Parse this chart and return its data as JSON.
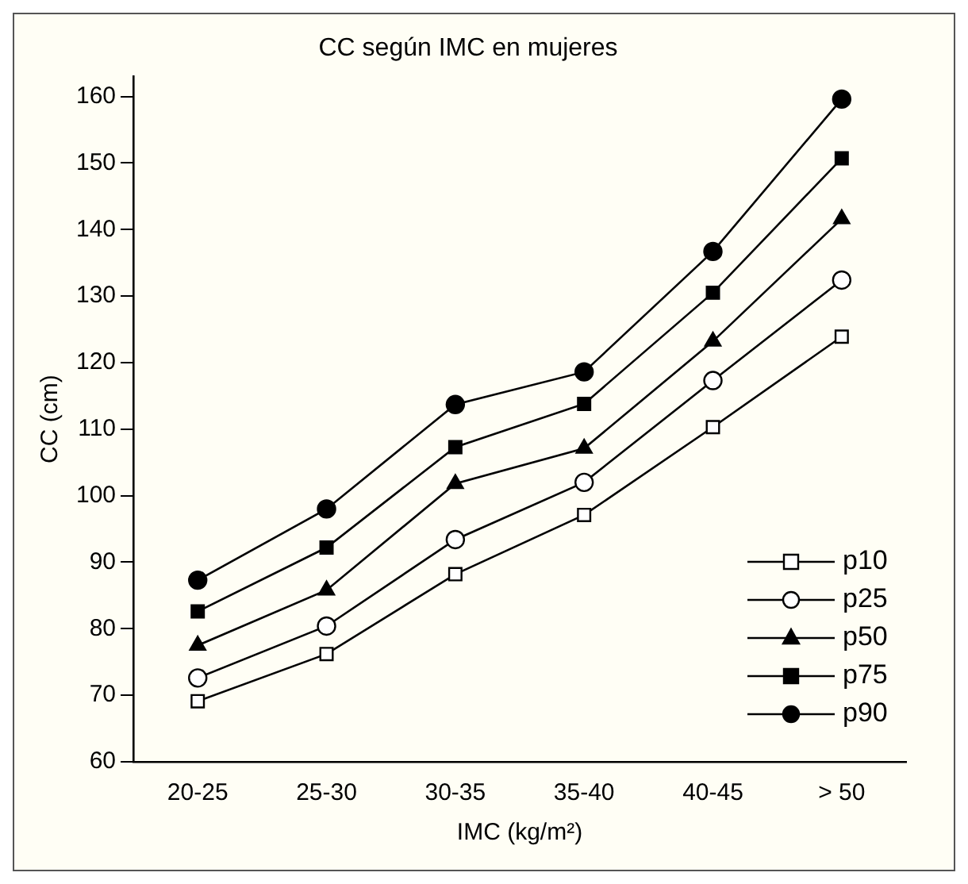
{
  "chart_data": {
    "type": "line",
    "title": "CC según IMC en mujeres",
    "xlabel": "IMC (kg/m²)",
    "ylabel": "CC (cm)",
    "categories": [
      "20-25",
      "25-30",
      "30-35",
      "35-40",
      "40-45",
      "> 50"
    ],
    "ylim": [
      60,
      163
    ],
    "yticks": [
      60,
      70,
      80,
      90,
      100,
      110,
      120,
      130,
      140,
      150,
      160
    ],
    "grid": false,
    "legend": "bottom right",
    "series": [
      {
        "name": "p10",
        "color": "#000000",
        "marker": "square",
        "values": [
          69.1,
          76.2,
          88.2,
          97.1,
          110.3,
          123.9
        ]
      },
      {
        "name": "p25",
        "color": "#000000",
        "marker": "circle",
        "values": [
          72.6,
          80.4,
          93.4,
          102.0,
          117.3,
          132.4
        ]
      },
      {
        "name": "p50",
        "color": "#000000",
        "marker": "triangle",
        "values": [
          77.5,
          85.8,
          101.8,
          107.1,
          123.2,
          141.6
        ]
      },
      {
        "name": "p75",
        "color": "#000000",
        "marker": "square",
        "values": [
          82.6,
          92.2,
          107.3,
          113.8,
          130.5,
          150.7
        ]
      },
      {
        "name": "p90",
        "color": "#000000",
        "marker": "circle",
        "values": [
          87.3,
          98.0,
          113.7,
          118.6,
          136.7,
          159.6
        ]
      }
    ]
  }
}
